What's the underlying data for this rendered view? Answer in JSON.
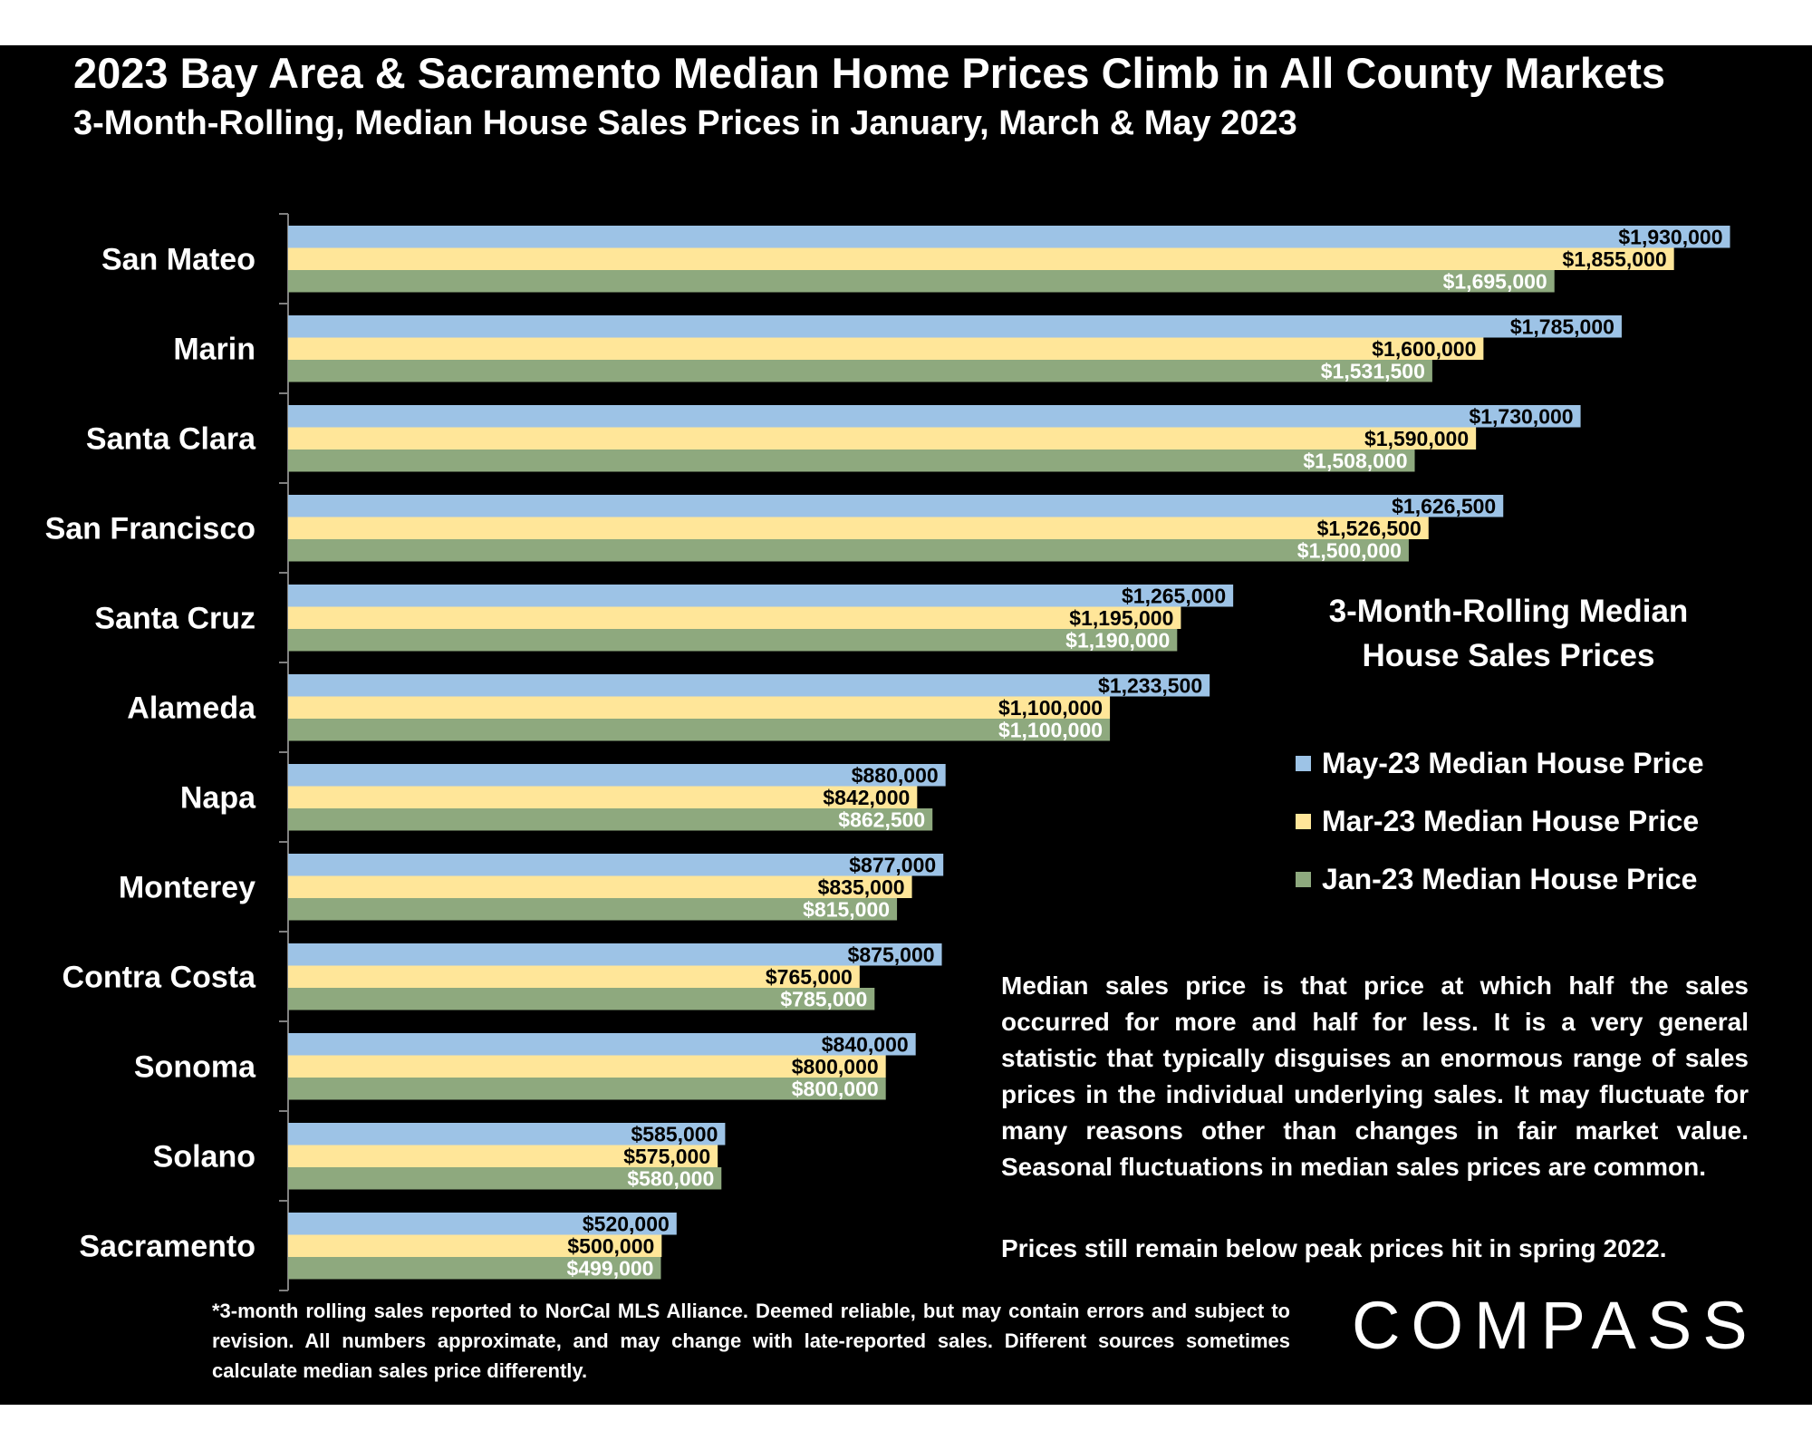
{
  "header": {
    "title": "2023 Bay Area & Sacramento Median Home Prices Climb in All County Markets",
    "subtitle": "3-Month-Rolling, Median House Sales Prices in January, March & May 2023"
  },
  "chart_data": {
    "type": "bar",
    "orientation": "horizontal",
    "title": "2023 Bay Area & Sacramento Median Home Prices Climb in All County Markets",
    "subtitle": "3-Month-Rolling, Median House Sales Prices in January, March & May 2023",
    "categories": [
      "San Mateo",
      "Marin",
      "Santa Clara",
      "San Francisco",
      "Santa Cruz",
      "Alameda",
      "Napa",
      "Monterey",
      "Contra Costa",
      "Sonoma",
      "Solano",
      "Sacramento"
    ],
    "series": [
      {
        "name": "May-23 Median House Price",
        "color": "#9DC3E6",
        "values": [
          1930000,
          1785000,
          1730000,
          1626500,
          1265000,
          1233500,
          880000,
          877000,
          875000,
          840000,
          585000,
          520000
        ],
        "labels": [
          "$1,930,000",
          "$1,785,000",
          "$1,730,000",
          "$1,626,500",
          "$1,265,000",
          "$1,233,500",
          "$880,000",
          "$877,000",
          "$875,000",
          "$840,000",
          "$585,000",
          "$520,000"
        ]
      },
      {
        "name": "Mar-23 Median House Price",
        "color": "#FFE699",
        "values": [
          1855000,
          1600000,
          1590000,
          1526500,
          1195000,
          1100000,
          842000,
          835000,
          765000,
          800000,
          575000,
          500000
        ],
        "labels": [
          "$1,855,000",
          "$1,600,000",
          "$1,590,000",
          "$1,526,500",
          "$1,195,000",
          "$1,100,000",
          "$842,000",
          "$835,000",
          "$765,000",
          "$800,000",
          "$575,000",
          "$500,000"
        ]
      },
      {
        "name": "Jan-23 Median House Price",
        "color": "#8EA97E",
        "values": [
          1695000,
          1531500,
          1508000,
          1500000,
          1190000,
          1100000,
          862500,
          815000,
          785000,
          800000,
          580000,
          499000
        ],
        "labels": [
          "$1,695,000",
          "$1,531,500",
          "$1,508,000",
          "$1,500,000",
          "$1,190,000",
          "$1,100,000",
          "$862,500",
          "$815,000",
          "$785,000",
          "$800,000",
          "$580,000",
          "$499,000"
        ]
      }
    ],
    "label_colors": [
      "#000000",
      "#000000",
      "#ffffff"
    ],
    "xlim": [
      0,
      1950000
    ],
    "grid": false,
    "legend_position": "right"
  },
  "legend": {
    "title": "3-Month-Rolling Median House Sales Prices",
    "title_line1": "3-Month-Rolling Median",
    "title_line2": "House Sales Prices"
  },
  "notes": {
    "paragraph1": "Median sales price is that price at which half the sales occurred for more and half for less. It is a very general statistic that typically disguises an enormous range of sales prices in the individual underlying sales. It may fluctuate for many reasons other than changes in fair market value. Seasonal fluctuations in median sales prices are common.",
    "paragraph2": "Prices still remain below peak prices hit in spring 2022."
  },
  "footnote": "*3-month rolling sales reported to NorCal MLS Alliance. Deemed reliable, but may contain errors and subject to revision. All numbers approximate, and may change with late-reported sales.  Different sources sometimes calculate median sales price differently.",
  "logo": "COMPASS"
}
